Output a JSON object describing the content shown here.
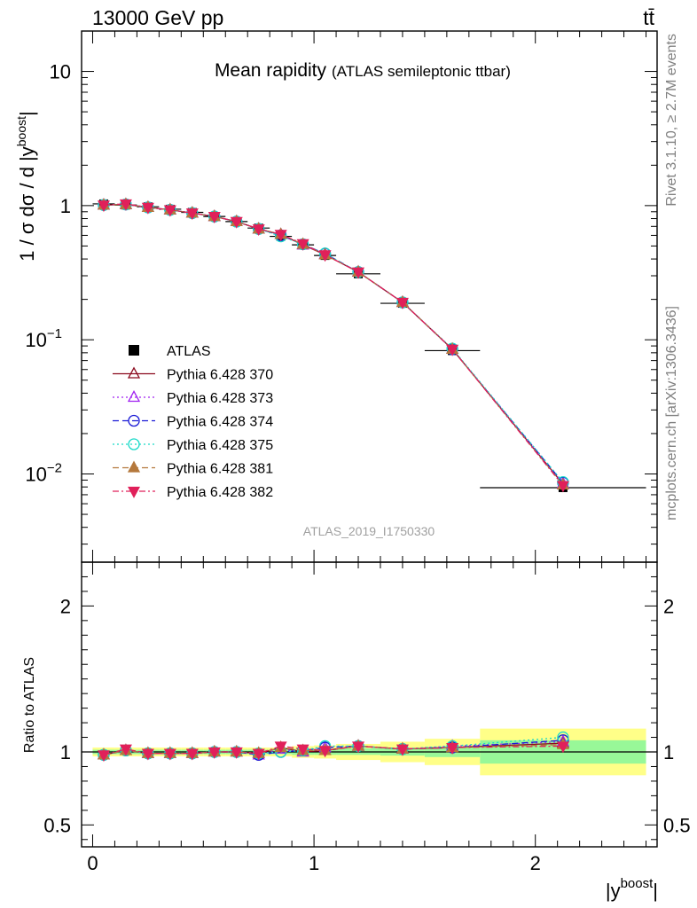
{
  "header": {
    "left": "13000 GeV pp",
    "right": "tt̄"
  },
  "side_labels": {
    "rivet": "Rivet 3.1.10, ≥ 2.7M events",
    "mcplots": "mcplots.cern.ch [arXiv:1306.3436]"
  },
  "main_title": "Mean rapidity",
  "main_subtitle": "(ATLAS semileptonic ttbar)",
  "watermark": "ATLAS_2019_I1750330",
  "chart_data": [
    {
      "type": "line",
      "panel": "main",
      "ylabel_main": "1 / σ dσ / d |y",
      "ylabel_sup": "boost",
      "ylabel_end": "|",
      "yscale": "log",
      "ylim": [
        0.0022,
        20
      ],
      "xlim": [
        -0.05,
        2.55
      ],
      "y_ticks": [
        {
          "v": 0.01,
          "base": "10",
          "exp": "−2"
        },
        {
          "v": 0.1,
          "base": "10",
          "exp": "−1"
        },
        {
          "v": 1,
          "base": "1",
          "exp": ""
        },
        {
          "v": 10,
          "base": "10",
          "exp": ""
        }
      ],
      "x_bins": [
        [
          0.0,
          0.1
        ],
        [
          0.1,
          0.2
        ],
        [
          0.2,
          0.3
        ],
        [
          0.3,
          0.4
        ],
        [
          0.4,
          0.5
        ],
        [
          0.5,
          0.6
        ],
        [
          0.6,
          0.7
        ],
        [
          0.7,
          0.8
        ],
        [
          0.8,
          0.9
        ],
        [
          0.9,
          1.0
        ],
        [
          1.0,
          1.1
        ],
        [
          1.1,
          1.3
        ],
        [
          1.3,
          1.5
        ],
        [
          1.5,
          1.75
        ],
        [
          1.75,
          2.5
        ]
      ],
      "x": [
        0.05,
        0.15,
        0.25,
        0.35,
        0.45,
        0.55,
        0.65,
        0.75,
        0.85,
        0.95,
        1.05,
        1.2,
        1.4,
        1.625,
        2.125
      ],
      "data": {
        "name": "ATLAS",
        "values": [
          1.03,
          1.01,
          0.98,
          0.94,
          0.89,
          0.83,
          0.76,
          0.68,
          0.59,
          0.51,
          0.425,
          0.31,
          0.187,
          0.083,
          0.0079
        ]
      },
      "series": [
        {
          "name": "Pythia 6.428 370",
          "color": "#8b0a1e",
          "dash": "",
          "marker": "triangle-open",
          "values": [
            1.01,
            1.02,
            0.97,
            0.93,
            0.88,
            0.83,
            0.76,
            0.67,
            0.61,
            0.51,
            0.43,
            0.32,
            0.19,
            0.085,
            0.0084
          ]
        },
        {
          "name": "Pythia 6.428 373",
          "color": "#a020f0",
          "dash": "2,3",
          "marker": "triangle-open",
          "values": [
            1.01,
            1.02,
            0.97,
            0.93,
            0.88,
            0.83,
            0.76,
            0.67,
            0.61,
            0.51,
            0.435,
            0.32,
            0.19,
            0.085,
            0.0085
          ]
        },
        {
          "name": "Pythia 6.428 374",
          "color": "#1a1ad6",
          "dash": "7,4",
          "marker": "circle-open",
          "values": [
            1.01,
            1.02,
            0.97,
            0.93,
            0.88,
            0.83,
            0.76,
            0.67,
            0.6,
            0.515,
            0.438,
            0.32,
            0.19,
            0.085,
            0.0086
          ]
        },
        {
          "name": "Pythia 6.428 375",
          "color": "#19d9c8",
          "dash": "2,3",
          "marker": "circle-open",
          "values": [
            1.01,
            1.02,
            0.97,
            0.93,
            0.88,
            0.83,
            0.76,
            0.67,
            0.59,
            0.515,
            0.44,
            0.32,
            0.19,
            0.086,
            0.0087
          ]
        },
        {
          "name": "Pythia 6.428 381",
          "color": "#b4783c",
          "dash": "7,4",
          "marker": "triangle-filled",
          "values": [
            1.01,
            1.02,
            0.97,
            0.93,
            0.88,
            0.83,
            0.76,
            0.67,
            0.61,
            0.515,
            0.43,
            0.32,
            0.19,
            0.085,
            0.0083
          ]
        },
        {
          "name": "Pythia 6.428 382",
          "color": "#e0205a",
          "dash": "7,3,2,3",
          "marker": "triangledown-filled",
          "values": [
            1.01,
            1.03,
            0.97,
            0.93,
            0.88,
            0.83,
            0.76,
            0.67,
            0.61,
            0.52,
            0.43,
            0.32,
            0.19,
            0.085,
            0.0082
          ]
        }
      ]
    },
    {
      "type": "line",
      "panel": "ratio",
      "ylabel": "Ratio to ATLAS",
      "xlabel_main": "|y",
      "xlabel_sup": "boost",
      "xlabel_end": "|",
      "ylim": [
        0.35,
        2.3
      ],
      "y_ticks": [
        0.5,
        1,
        2
      ],
      "y_tick_labels": [
        "0.5",
        "1",
        "2"
      ],
      "x_ticks": [
        0,
        1,
        2
      ],
      "x_tick_labels": [
        "0",
        "1",
        "2"
      ],
      "band_stat": [
        [
          0.985,
          1.015
        ],
        [
          0.985,
          1.015
        ],
        [
          0.985,
          1.015
        ],
        [
          0.985,
          1.015
        ],
        [
          0.985,
          1.015
        ],
        [
          0.985,
          1.015
        ],
        [
          0.985,
          1.015
        ],
        [
          0.985,
          1.015
        ],
        [
          0.985,
          1.015
        ],
        [
          0.98,
          1.02
        ],
        [
          0.98,
          1.02
        ],
        [
          0.98,
          1.025
        ],
        [
          0.975,
          1.025
        ],
        [
          0.965,
          1.035
        ],
        [
          0.92,
          1.08
        ]
      ],
      "band_total": [
        [
          0.97,
          1.03
        ],
        [
          0.97,
          1.03
        ],
        [
          0.97,
          1.03
        ],
        [
          0.97,
          1.03
        ],
        [
          0.97,
          1.03
        ],
        [
          0.97,
          1.03
        ],
        [
          0.97,
          1.03
        ],
        [
          0.97,
          1.03
        ],
        [
          0.97,
          1.03
        ],
        [
          0.96,
          1.04
        ],
        [
          0.955,
          1.045
        ],
        [
          0.945,
          1.055
        ],
        [
          0.93,
          1.07
        ],
        [
          0.91,
          1.09
        ],
        [
          0.84,
          1.16
        ]
      ],
      "series": [
        {
          "name": "Pythia 6.428 370",
          "values": [
            0.98,
            1.01,
            0.99,
            0.99,
            0.99,
            1.0,
            1.0,
            0.99,
            1.03,
            1.0,
            1.01,
            1.04,
            1.02,
            1.03,
            1.06
          ]
        },
        {
          "name": "Pythia 6.428 373",
          "values": [
            0.98,
            1.01,
            0.99,
            0.99,
            0.99,
            1.0,
            1.0,
            0.98,
            1.02,
            1.0,
            1.03,
            1.04,
            1.02,
            1.04,
            1.07
          ]
        },
        {
          "name": "Pythia 6.428 374",
          "values": [
            0.98,
            1.01,
            0.99,
            0.99,
            0.99,
            1.0,
            1.0,
            0.98,
            1.0,
            1.01,
            1.03,
            1.04,
            1.02,
            1.03,
            1.08
          ]
        },
        {
          "name": "Pythia 6.428 375",
          "values": [
            0.98,
            1.01,
            0.99,
            0.99,
            0.99,
            1.0,
            1.0,
            0.99,
            1.0,
            1.01,
            1.04,
            1.04,
            1.02,
            1.04,
            1.1
          ]
        },
        {
          "name": "Pythia 6.428 381",
          "values": [
            0.98,
            1.01,
            0.99,
            0.99,
            0.99,
            1.0,
            1.0,
            0.99,
            1.03,
            1.01,
            1.01,
            1.04,
            1.02,
            1.03,
            1.05
          ]
        },
        {
          "name": "Pythia 6.428 382",
          "values": [
            0.98,
            1.02,
            0.99,
            0.99,
            0.99,
            1.0,
            1.0,
            0.99,
            1.04,
            1.02,
            1.01,
            1.04,
            1.02,
            1.03,
            1.04
          ]
        }
      ]
    }
  ]
}
